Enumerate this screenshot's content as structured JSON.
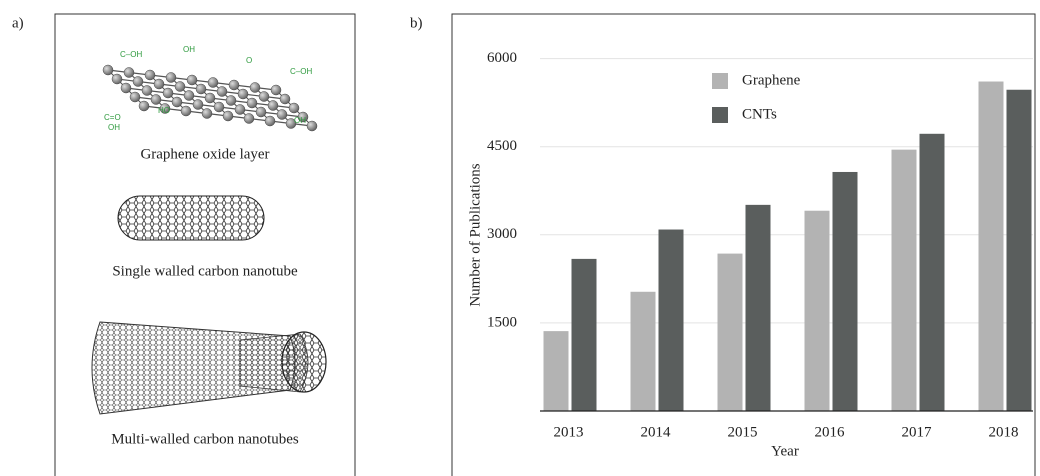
{
  "panel_labels": [
    "a)",
    "b)"
  ],
  "diagram": {
    "captions": [
      "Graphene oxide layer",
      "Single walled carbon nanotube",
      "Multi-walled carbon nanotubes"
    ],
    "group_labels": [
      "C–OH",
      "OH",
      "O",
      "C–OH",
      "HO",
      "OH",
      "C=O",
      "OH"
    ]
  },
  "chart_data": {
    "type": "bar",
    "x_label": "Year",
    "y_label": "Number of Publications",
    "categories": [
      "2013",
      "2014",
      "2015",
      "2016",
      "2017",
      "2018"
    ],
    "series": [
      {
        "name": "Graphene",
        "color": "#b3b3b3",
        "values": [
          1360,
          2030,
          2680,
          3410,
          4450,
          5610
        ]
      },
      {
        "name": "CNTs",
        "color": "#5a5e5d",
        "values": [
          2590,
          3090,
          3510,
          4070,
          4720,
          5470
        ]
      }
    ],
    "ylim": [
      0,
      6300
    ],
    "yticks": [
      1500,
      3000,
      4500,
      6000
    ],
    "grid": true
  }
}
